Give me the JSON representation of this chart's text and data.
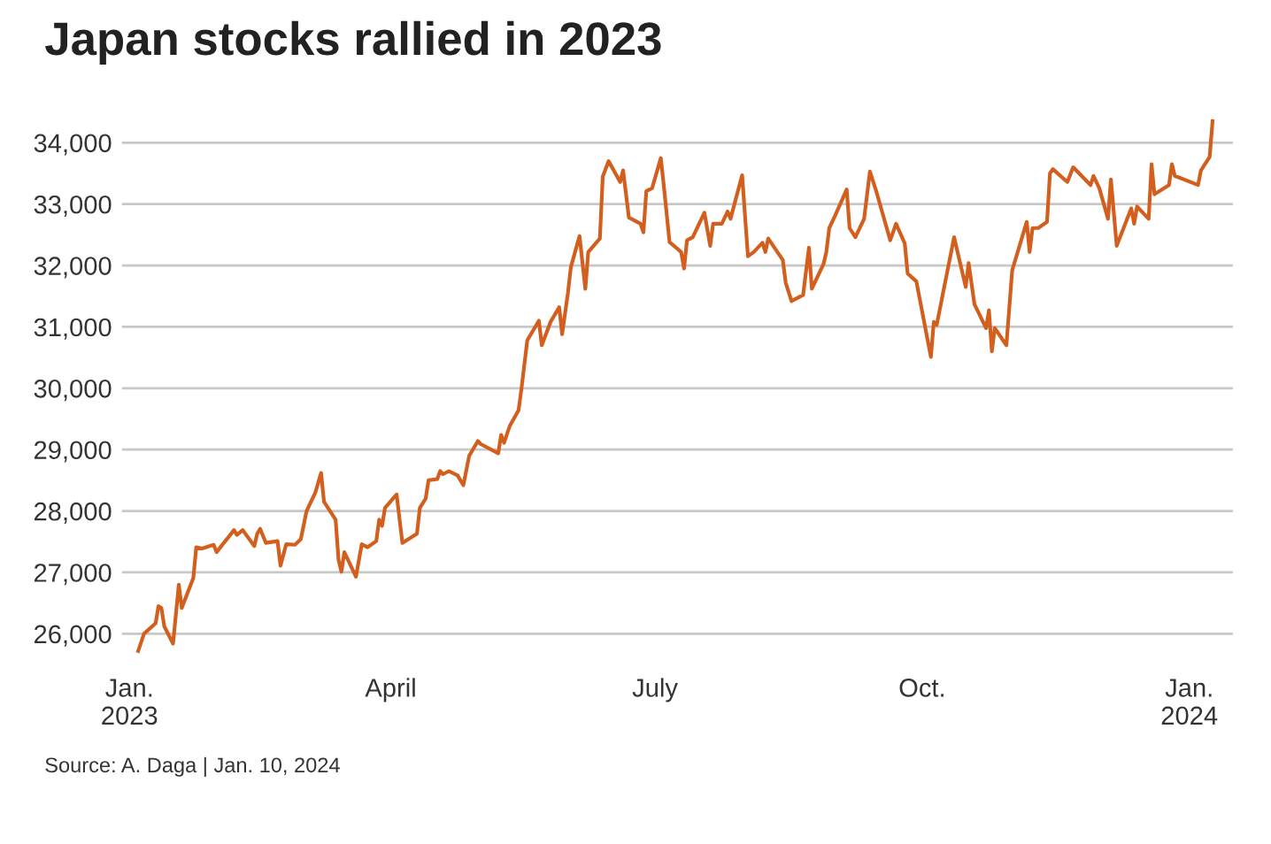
{
  "chart_data": {
    "type": "line",
    "title": "Japan stocks rallied in 2023",
    "annotations": [
      "Source: A. Daga | Jan. 10, 2024"
    ],
    "x": [
      "2023-01-04",
      "2023-01-06",
      "2023-01-10",
      "2023-01-11",
      "2023-01-12",
      "2023-01-13",
      "2023-01-16",
      "2023-01-18",
      "2023-01-19",
      "2023-01-23",
      "2023-01-24",
      "2023-01-26",
      "2023-01-30",
      "2023-01-31",
      "2023-02-06",
      "2023-02-07",
      "2023-02-09",
      "2023-02-13",
      "2023-02-14",
      "2023-02-15",
      "2023-02-17",
      "2023-02-21",
      "2023-02-22",
      "2023-02-24",
      "2023-02-27",
      "2023-03-01",
      "2023-03-03",
      "2023-03-06",
      "2023-03-08",
      "2023-03-09",
      "2023-03-13",
      "2023-03-14",
      "2023-03-15",
      "2023-03-16",
      "2023-03-20",
      "2023-03-22",
      "2023-03-24",
      "2023-03-27",
      "2023-03-28",
      "2023-03-29",
      "2023-03-30",
      "2023-04-03",
      "2023-04-05",
      "2023-04-10",
      "2023-04-11",
      "2023-04-13",
      "2023-04-14",
      "2023-04-17",
      "2023-04-18",
      "2023-04-19",
      "2023-04-21",
      "2023-04-24",
      "2023-04-26",
      "2023-04-28",
      "2023-05-01",
      "2023-05-02",
      "2023-05-08",
      "2023-05-09",
      "2023-05-10",
      "2023-05-12",
      "2023-05-15",
      "2023-05-16",
      "2023-05-18",
      "2023-05-22",
      "2023-05-23",
      "2023-05-26",
      "2023-05-29",
      "2023-05-30",
      "2023-06-01",
      "2023-06-02",
      "2023-06-05",
      "2023-06-07",
      "2023-06-08",
      "2023-06-12",
      "2023-06-13",
      "2023-06-15",
      "2023-06-19",
      "2023-06-20",
      "2023-06-22",
      "2023-06-26",
      "2023-06-27",
      "2023-06-28",
      "2023-06-30",
      "2023-07-03",
      "2023-07-04",
      "2023-07-06",
      "2023-07-10",
      "2023-07-11",
      "2023-07-12",
      "2023-07-14",
      "2023-07-18",
      "2023-07-20",
      "2023-07-21",
      "2023-07-24",
      "2023-07-26",
      "2023-07-27",
      "2023-07-31",
      "2023-08-02",
      "2023-08-04",
      "2023-08-07",
      "2023-08-08",
      "2023-08-09",
      "2023-08-14",
      "2023-08-15",
      "2023-08-17",
      "2023-08-21",
      "2023-08-23",
      "2023-08-24",
      "2023-08-28",
      "2023-08-29",
      "2023-08-30",
      "2023-09-01",
      "2023-09-05",
      "2023-09-06",
      "2023-09-08",
      "2023-09-11",
      "2023-09-13",
      "2023-09-15",
      "2023-09-20",
      "2023-09-22",
      "2023-09-25",
      "2023-09-26",
      "2023-09-29",
      "2023-10-04",
      "2023-10-05",
      "2023-10-06",
      "2023-10-12",
      "2023-10-16",
      "2023-10-17",
      "2023-10-19",
      "2023-10-23",
      "2023-10-24",
      "2023-10-25",
      "2023-10-26",
      "2023-10-30",
      "2023-11-01",
      "2023-11-06",
      "2023-11-07",
      "2023-11-08",
      "2023-11-10",
      "2023-11-13",
      "2023-11-14",
      "2023-11-15",
      "2023-11-20",
      "2023-11-22",
      "2023-11-28",
      "2023-11-29",
      "2023-12-01",
      "2023-12-04",
      "2023-12-05",
      "2023-12-07",
      "2023-12-11",
      "2023-12-12",
      "2023-12-13",
      "2023-12-14",
      "2023-12-18",
      "2023-12-19",
      "2023-12-20",
      "2023-12-25",
      "2023-12-26",
      "2023-12-27",
      "2024-01-04",
      "2024-01-05",
      "2024-01-08",
      "2024-01-09"
    ],
    "series": [
      {
        "color": "#d35f1f",
        "values": [
          25720,
          26000,
          26170,
          26450,
          26420,
          26120,
          25840,
          26800,
          26420,
          26910,
          27410,
          27390,
          27450,
          27330,
          27690,
          27610,
          27690,
          27430,
          27630,
          27710,
          27480,
          27510,
          27110,
          27460,
          27450,
          27540,
          28000,
          28300,
          28620,
          28150,
          27860,
          27210,
          27010,
          27330,
          26930,
          27460,
          27410,
          27510,
          27860,
          27760,
          28050,
          28270,
          27480,
          27630,
          28050,
          28200,
          28500,
          28520,
          28650,
          28600,
          28650,
          28580,
          28420,
          28900,
          29140,
          29090,
          28940,
          29240,
          29110,
          29390,
          29640,
          29990,
          30780,
          31100,
          30700,
          31080,
          31320,
          30880,
          31550,
          31970,
          32480,
          31620,
          32220,
          32440,
          33450,
          33700,
          33360,
          33550,
          32780,
          32680,
          32540,
          33210,
          33260,
          33750,
          33310,
          32380,
          32220,
          31950,
          32410,
          32460,
          32860,
          32320,
          32680,
          32680,
          32880,
          32760,
          33470,
          32150,
          32220,
          32370,
          32220,
          32440,
          32090,
          31720,
          31420,
          31520,
          32290,
          31620,
          32020,
          32220,
          32610,
          32810,
          33240,
          32610,
          32460,
          32760,
          33530,
          33240,
          32410,
          32680,
          32360,
          31870,
          31740,
          30510,
          31080,
          31030,
          32460,
          31650,
          32040,
          31370,
          30980,
          31270,
          30600,
          30980,
          30700,
          31920,
          32710,
          32220,
          32610,
          32610,
          32710,
          33500,
          33570,
          33360,
          33600,
          33310,
          33460,
          33260,
          32760,
          33400,
          32320,
          32810,
          32930,
          32680,
          32960,
          32760,
          33650,
          33160,
          33310,
          33650,
          33460,
          33310,
          33550,
          33770,
          34350
        ]
      }
    ],
    "xlim": [
      "2022-12-29",
      "2024-01-16"
    ],
    "xticks": [
      {
        "value": "2023-01-01",
        "label": "Jan.\n2023"
      },
      {
        "value": "2023-04-01",
        "label": "April"
      },
      {
        "value": "2023-07-01",
        "label": "July"
      },
      {
        "value": "2023-10-01",
        "label": "Oct."
      },
      {
        "value": "2024-01-01",
        "label": "Jan.\n2024"
      }
    ],
    "ylim": [
      25600,
      34400
    ],
    "yticks": [
      {
        "value": 26000,
        "label": "26,000"
      },
      {
        "value": 27000,
        "label": "27,000"
      },
      {
        "value": 28000,
        "label": "28,000"
      },
      {
        "value": 29000,
        "label": "29,000"
      },
      {
        "value": 30000,
        "label": "30,000"
      },
      {
        "value": 31000,
        "label": "31,000"
      },
      {
        "value": 32000,
        "label": "32,000"
      },
      {
        "value": 33000,
        "label": "33,000"
      },
      {
        "value": 34000,
        "label": "34,000"
      }
    ],
    "grid": "y"
  }
}
